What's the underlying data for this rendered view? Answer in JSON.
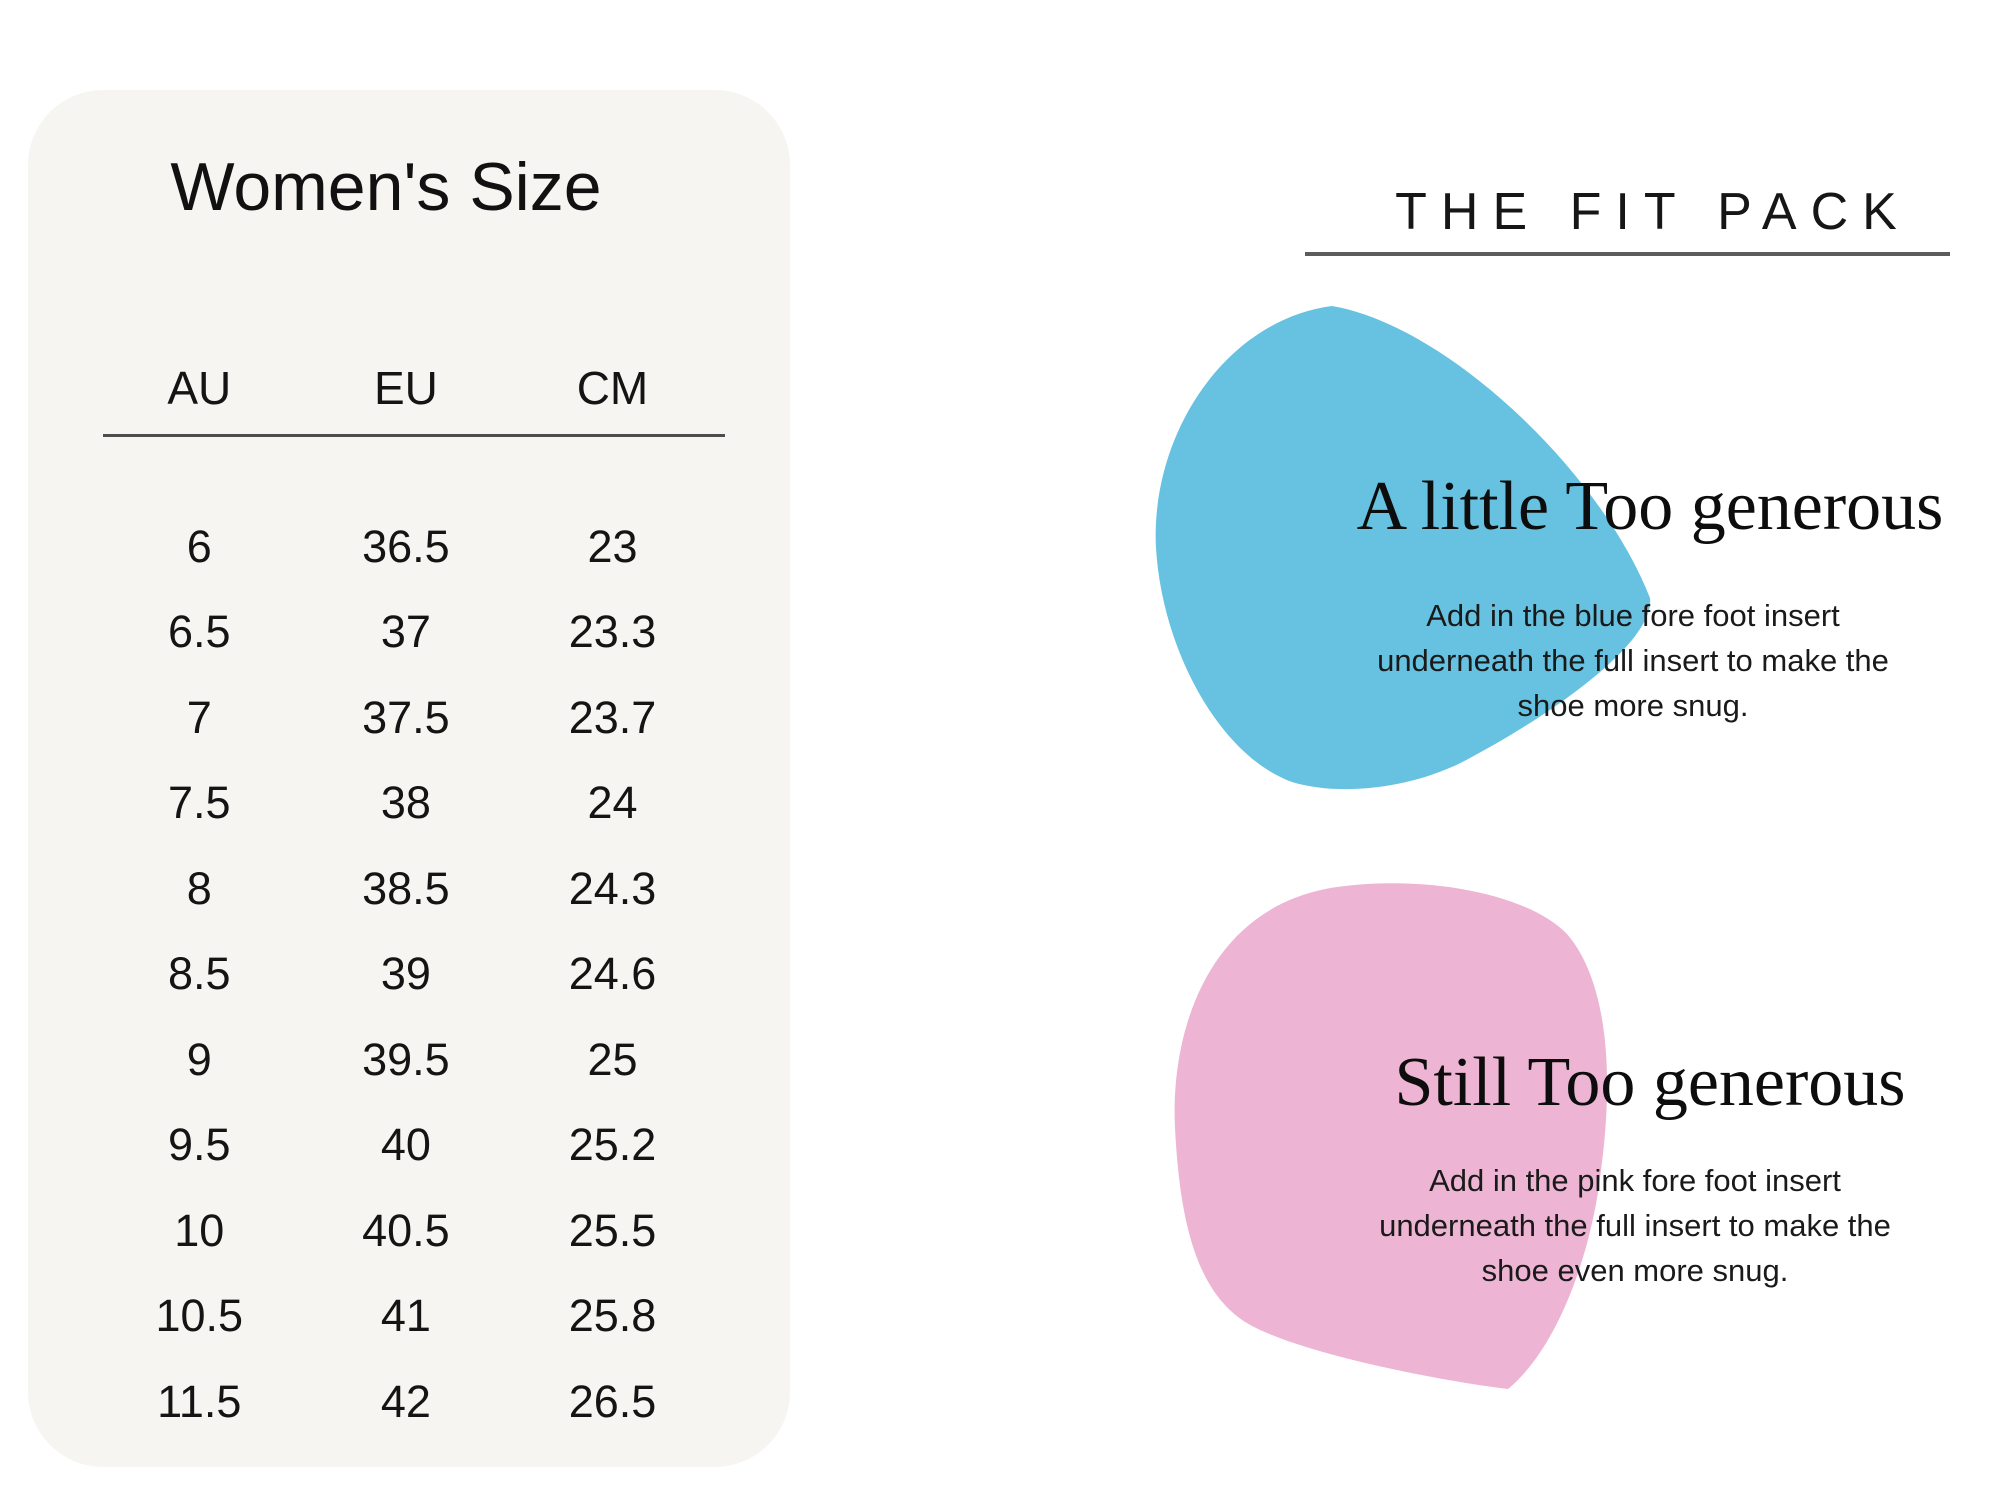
{
  "page": {
    "background": "#ffffff"
  },
  "size_chart": {
    "title": "Women's Size",
    "panel_color": "#f7f5f2",
    "columns": [
      "AU",
      "EU",
      "CM"
    ],
    "rows": [
      [
        "6",
        "36.5",
        "23"
      ],
      [
        "6.5",
        "37",
        "23.3"
      ],
      [
        "7",
        "37.5",
        "23.7"
      ],
      [
        "7.5",
        "38",
        "24"
      ],
      [
        "8",
        "38.5",
        "24.3"
      ],
      [
        "8.5",
        "39",
        "24.6"
      ],
      [
        "9",
        "39.5",
        "25"
      ],
      [
        "9.5",
        "40",
        "25.2"
      ],
      [
        "10",
        "40.5",
        "25.5"
      ],
      [
        "10.5",
        "41",
        "25.8"
      ],
      [
        "11.5",
        "42",
        "26.5"
      ]
    ]
  },
  "fit_pack": {
    "title": "THE FIT PACK",
    "sections": [
      {
        "heading": "A little Too generous",
        "body_lines": [
          "Add in the blue fore foot insert",
          "underneath the full insert to make the",
          "shoe more snug."
        ],
        "body": "Add in the blue fore foot insert underneath the full insert to make the shoe more snug.",
        "blob_color": "#66c2e0"
      },
      {
        "heading": "Still Too generous",
        "body_lines": [
          "Add in the pink fore foot insert",
          "underneath the full insert to make the",
          "shoe even more snug."
        ],
        "body": "Add in the pink fore foot insert underneath the full insert to make the shoe even more snug.",
        "blob_color": "#edb5d3"
      }
    ]
  }
}
